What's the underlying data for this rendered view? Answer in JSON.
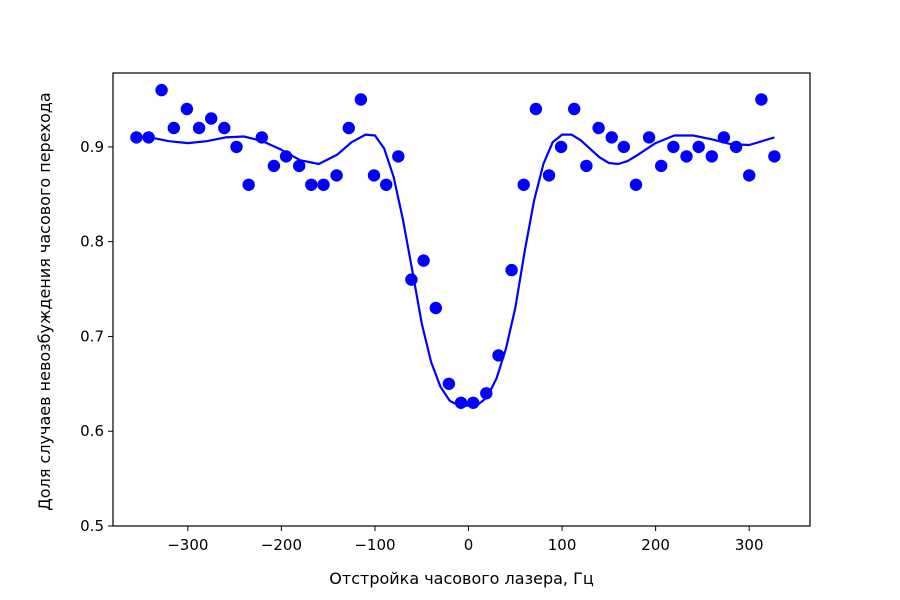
{
  "chart_data": {
    "type": "scatter",
    "title": "",
    "xlabel": "Отстройка часового лазера, Гц",
    "ylabel": "Доля случаев невозбуждения часового перехода",
    "xlim": [
      -380,
      365
    ],
    "ylim": [
      0.5,
      0.978
    ],
    "x_ticks": [
      -300,
      -200,
      -100,
      0,
      100,
      200,
      300
    ],
    "x_tick_labels": [
      "−300",
      "−200",
      "−100",
      "0",
      "100",
      "200",
      "300"
    ],
    "y_ticks": [
      0.5,
      0.6,
      0.7,
      0.8,
      0.9
    ],
    "y_tick_labels": [
      "0.5",
      "0.6",
      "0.7",
      "0.8",
      "0.9"
    ],
    "grid": false,
    "legend": "none",
    "colors": {
      "points": "#0000ff",
      "fit": "#0000ff",
      "axes": "#000000"
    },
    "series": [
      {
        "kind": "points",
        "x": [
          -355,
          -342,
          -328,
          -315,
          -301,
          -288,
          -275,
          -261,
          -248,
          -235,
          -221,
          -208,
          -195,
          -181,
          -168,
          -155,
          -141,
          -128,
          -115,
          -101,
          -88,
          -75,
          -61,
          -48,
          -35,
          -21,
          -8,
          5,
          19,
          32,
          46,
          59,
          72,
          86,
          99,
          113,
          126,
          139,
          153,
          166,
          179,
          193,
          206,
          219,
          233,
          246,
          260,
          273,
          286,
          300,
          313,
          327
        ],
        "y": [
          0.91,
          0.91,
          0.96,
          0.92,
          0.94,
          0.92,
          0.93,
          0.92,
          0.9,
          0.86,
          0.91,
          0.88,
          0.89,
          0.88,
          0.86,
          0.86,
          0.87,
          0.92,
          0.95,
          0.87,
          0.86,
          0.89,
          0.76,
          0.78,
          0.73,
          0.65,
          0.63,
          0.63,
          0.64,
          0.68,
          0.77,
          0.86,
          0.94,
          0.87,
          0.9,
          0.94,
          0.88,
          0.92,
          0.91,
          0.9,
          0.86,
          0.91,
          0.88,
          0.9,
          0.89,
          0.9,
          0.89,
          0.91,
          0.9,
          0.87,
          0.95,
          0.89
        ]
      },
      {
        "kind": "line",
        "x": [
          -355,
          -340,
          -320,
          -300,
          -280,
          -260,
          -240,
          -220,
          -200,
          -180,
          -160,
          -140,
          -125,
          -110,
          -100,
          -90,
          -80,
          -70,
          -60,
          -50,
          -40,
          -30,
          -20,
          -10,
          0,
          10,
          20,
          30,
          40,
          50,
          60,
          70,
          80,
          90,
          100,
          110,
          120,
          130,
          140,
          150,
          160,
          170,
          180,
          200,
          220,
          240,
          260,
          280,
          300,
          327
        ],
        "y": [
          0.911,
          0.91,
          0.906,
          0.904,
          0.906,
          0.91,
          0.911,
          0.906,
          0.897,
          0.886,
          0.882,
          0.892,
          0.905,
          0.913,
          0.912,
          0.898,
          0.868,
          0.823,
          0.769,
          0.714,
          0.673,
          0.647,
          0.632,
          0.627,
          0.627,
          0.628,
          0.636,
          0.656,
          0.687,
          0.73,
          0.79,
          0.843,
          0.882,
          0.905,
          0.913,
          0.913,
          0.907,
          0.898,
          0.889,
          0.883,
          0.882,
          0.885,
          0.891,
          0.904,
          0.912,
          0.912,
          0.908,
          0.903,
          0.902,
          0.91
        ]
      }
    ]
  }
}
